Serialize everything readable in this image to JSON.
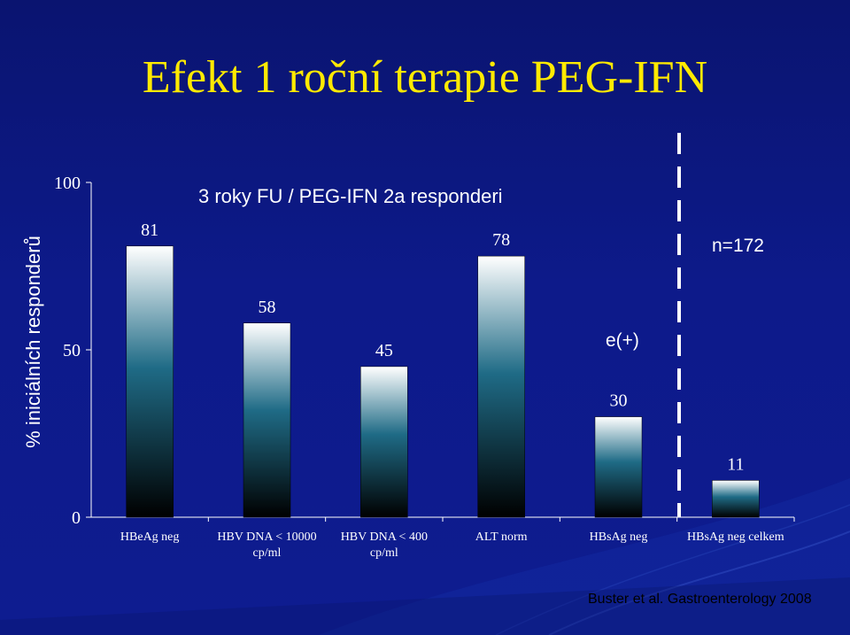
{
  "title": "Efekt 1 roční terapie PEG-IFN",
  "citation": "Buster et al. Gastroenterology 2008",
  "chart_data": {
    "type": "bar",
    "subtitle": "3 roky FU / PEG-IFN 2a responderi",
    "ylabel": "% iniciálních responderů",
    "ylim": [
      0,
      100
    ],
    "yticks": [
      0,
      50,
      100
    ],
    "categories": [
      [
        "HBeAg neg"
      ],
      [
        "HBV DNA < 10000",
        "cp/ml"
      ],
      [
        "HBV DNA < 400",
        "cp/ml"
      ],
      [
        "ALT norm"
      ],
      [
        "HBsAg neg"
      ],
      [
        "HBsAg neg celkem"
      ]
    ],
    "values": [
      81,
      58,
      45,
      78,
      30,
      11
    ],
    "annotations": {
      "e_plus": "e(+)",
      "n_total": "n=172"
    },
    "colors": {
      "bar_top": "#ffffff",
      "bar_mid": "#1f6b86",
      "bar_bottom": "#000000",
      "label": "#ffffff"
    }
  }
}
